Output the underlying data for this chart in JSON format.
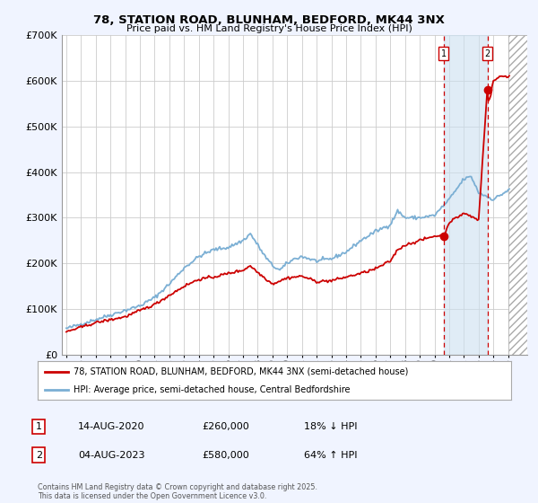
{
  "title": "78, STATION ROAD, BLUNHAM, BEDFORD, MK44 3NX",
  "subtitle": "Price paid vs. HM Land Registry's House Price Index (HPI)",
  "legend_line1": "78, STATION ROAD, BLUNHAM, BEDFORD, MK44 3NX (semi-detached house)",
  "legend_line2": "HPI: Average price, semi-detached house, Central Bedfordshire",
  "footnote": "Contains HM Land Registry data © Crown copyright and database right 2025.\nThis data is licensed under the Open Government Licence v3.0.",
  "transaction1_date": "14-AUG-2020",
  "transaction1_price": "£260,000",
  "transaction1_hpi": "18% ↓ HPI",
  "transaction2_date": "04-AUG-2023",
  "transaction2_price": "£580,000",
  "transaction2_hpi": "64% ↑ HPI",
  "paid_color": "#cc0000",
  "hpi_color": "#7bafd4",
  "background_color": "#f0f4ff",
  "plot_bg_color": "#ffffff",
  "vline_color": "#cc0000",
  "ylim": [
    0,
    700000
  ],
  "xlim_start": 1994.7,
  "xlim_end": 2026.3,
  "marker1_x": 2020.62,
  "marker1_y": 260000,
  "marker2_x": 2023.6,
  "marker2_y": 580000,
  "vline1_x": 2020.62,
  "vline2_x": 2023.6,
  "shade_x1": 2020.62,
  "shade_x2": 2023.6,
  "hatch_x1": 2025.0,
  "hatch_x2": 2026.3
}
